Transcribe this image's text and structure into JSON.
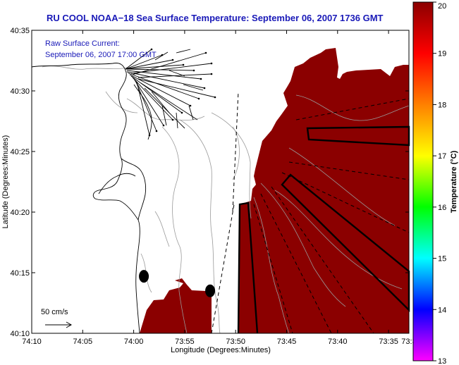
{
  "chart_data": {
    "type": "heatmap",
    "title": "RU COOL  NOAA−18  Sea Surface Temperature:  September 06, 2007 1736 GMT",
    "annotation_lines": [
      "Raw Surface Current:",
      "September 06, 2007 17:00 GMT"
    ],
    "scale_label": "50 cm/s",
    "xlabel": "Longitude (Degrees:Minutes)",
    "ylabel": "Latitude (Degrees:Minutes)",
    "x_ticks": [
      "74:10",
      "74:05",
      "74:00",
      "73:55",
      "73:50",
      "73:45",
      "73:40",
      "73:35",
      "73:3"
    ],
    "y_ticks": [
      "40:10",
      "40:15",
      "40:20",
      "40:25",
      "40:30",
      "40:35"
    ],
    "xlim_minutes_west": [
      70,
      33
    ],
    "ylim_minutes_north": [
      10,
      35
    ],
    "colorbar": {
      "label": "Temperature (°C)",
      "ticks": [
        "13",
        "14",
        "15",
        "16",
        "17",
        "18",
        "19",
        "20"
      ],
      "range": [
        13,
        20
      ],
      "colors": [
        "#ff00ff",
        "#0000ff",
        "#00ffff",
        "#00ff00",
        "#ffff00",
        "#ff8000",
        "#ff0000",
        "#8b0000"
      ]
    },
    "sst_fill_color": "#8b0000",
    "sst_value_shown": 20,
    "markers": [
      {
        "lon_min": 59,
        "lat_min": 14.7
      },
      {
        "lon_min": 52.5,
        "lat_min": 13.5
      }
    ]
  }
}
